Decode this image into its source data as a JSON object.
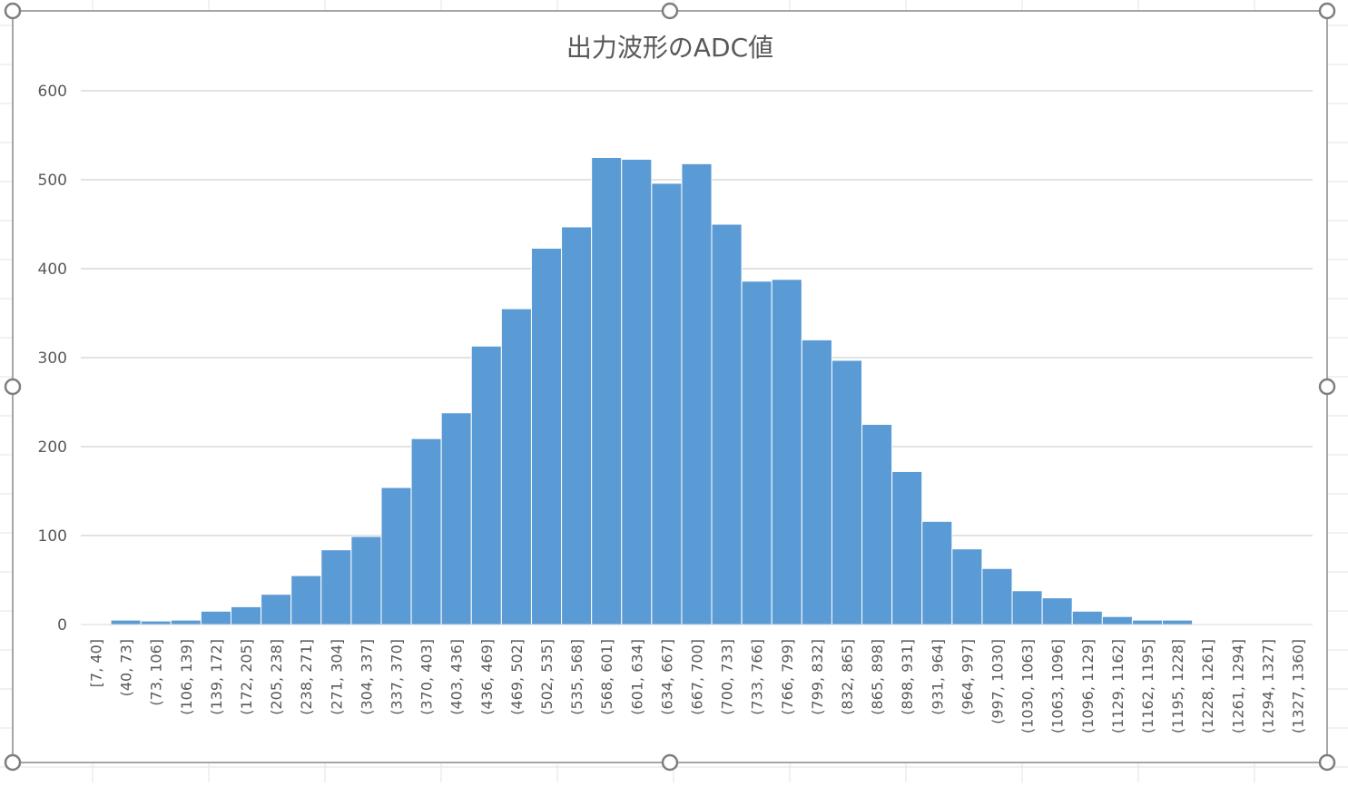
{
  "chart_data": {
    "type": "bar",
    "title": "出力波形のADC値",
    "xlabel": "",
    "ylabel": "",
    "ylim": [
      0,
      600
    ],
    "yticks": [
      0,
      100,
      200,
      300,
      400,
      500,
      600
    ],
    "grid": true,
    "legend": "none",
    "categories": [
      "[7, 40]",
      "(40, 73]",
      "(73, 106]",
      "(106, 139]",
      "(139, 172]",
      "(172, 205]",
      "(205, 238]",
      "(238, 271]",
      "(271, 304]",
      "(304, 337]",
      "(337, 370]",
      "(370, 403]",
      "(403, 436]",
      "(436, 469]",
      "(469, 502]",
      "(502, 535]",
      "(535, 568]",
      "(568, 601]",
      "(601, 634]",
      "(634, 667]",
      "(667, 700]",
      "(700, 733]",
      "(733, 766]",
      "(766, 799]",
      "(799, 832]",
      "(832, 865]",
      "(865, 898]",
      "(898, 931]",
      "(931, 964]",
      "(964, 997]",
      "(997, 1030]",
      "(1030, 1063]",
      "(1063, 1096]",
      "(1096, 1129]",
      "(1129, 1162]",
      "(1162, 1195]",
      "(1195, 1228]",
      "(1228, 1261]",
      "(1261, 1294]",
      "(1294, 1327]",
      "(1327, 1360]"
    ],
    "values": [
      0,
      5,
      4,
      5,
      15,
      20,
      34,
      55,
      84,
      99,
      154,
      209,
      238,
      313,
      355,
      423,
      447,
      525,
      523,
      496,
      518,
      450,
      386,
      388,
      320,
      297,
      225,
      172,
      116,
      85,
      63,
      38,
      30,
      15,
      9,
      5,
      5,
      0,
      0,
      0,
      0
    ],
    "colors": {
      "bar": "#5b9bd5",
      "bar_edge": "#ffffff",
      "grid": "#d9d9d9",
      "text": "#595959",
      "frame": "#a6a6a6"
    }
  }
}
